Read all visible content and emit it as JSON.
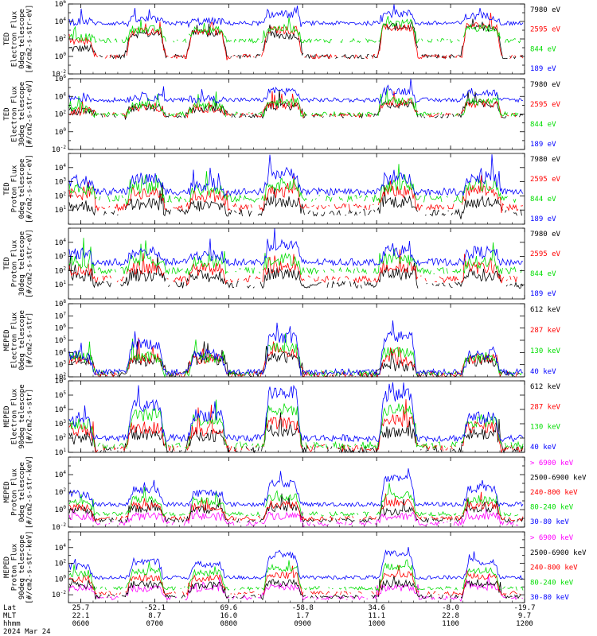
{
  "colors": {
    "blue": "#0000ff",
    "red": "#ff0000",
    "green": "#00dd00",
    "black": "#000000",
    "magenta": "#ff00ff"
  },
  "chart_data": {
    "type": "line",
    "x_axis": {
      "unit": "hhmm",
      "range": [
        "0550",
        "1200"
      ],
      "ticks": [
        {
          "hhmm": "0600",
          "lat": "25.7",
          "mlt": "22.1"
        },
        {
          "hhmm": "0700",
          "lat": "-52.1",
          "mlt": "8.7"
        },
        {
          "hhmm": "0800",
          "lat": "69.6",
          "mlt": "16.0"
        },
        {
          "hhmm": "0900",
          "lat": "-58.8",
          "mlt": "1.7"
        },
        {
          "hhmm": "1000",
          "lat": "34.6",
          "mlt": "11.1"
        },
        {
          "hhmm": "1100",
          "lat": "-8.0",
          "mlt": "22.8"
        },
        {
          "hhmm": "1200",
          "lat": "-19.7",
          "mlt": "9.7"
        }
      ],
      "row_labels": {
        "lat": "Lat",
        "mlt": "MLT",
        "hhmm": "hhmm"
      },
      "date": "2024 Mar 24"
    },
    "panels": [
      {
        "ylabel": [
          "TED",
          "Electron Flux",
          "0deg telescope",
          "[#/cm2-s-str-eV]"
        ],
        "y_scale": "log",
        "y_exp_range": [
          -2,
          6
        ],
        "tick_exps": [
          -2,
          0,
          2,
          4,
          6
        ],
        "series": [
          {
            "name": "7980 eV",
            "color": "black",
            "pass_levels": [
              0.9,
              2.6,
              2.6,
              2.4,
              3.4,
              3.2
            ],
            "quiet_level": 0.0
          },
          {
            "name": "2595 eV",
            "color": "red",
            "pass_levels": [
              1.8,
              2.8,
              2.8,
              3.0,
              3.3,
              3.5
            ],
            "quiet_level": 0.0
          },
          {
            "name": "844 eV",
            "color": "green",
            "pass_levels": [
              2.2,
              3.1,
              3.0,
              3.2,
              3.8,
              3.3
            ],
            "quiet_level": 1.8
          },
          {
            "name": "189 eV",
            "color": "blue",
            "pass_levels": [
              4.0,
              4.2,
              4.0,
              4.8,
              4.9,
              4.6
            ],
            "quiet_level": 3.8
          }
        ]
      },
      {
        "ylabel": [
          "TED",
          "Electron Flux",
          "30deg telescope",
          "[#/cm2-s-str-eV]"
        ],
        "y_scale": "log",
        "y_exp_range": [
          -2,
          6
        ],
        "tick_exps": [
          -2,
          0,
          2,
          4,
          6
        ],
        "series": [
          {
            "name": "7980 eV",
            "color": "black",
            "pass_levels": [
              2.3,
              2.7,
              2.6,
              2.9,
              3.1,
              3.2
            ],
            "quiet_level": 1.8
          },
          {
            "name": "2595 eV",
            "color": "red",
            "pass_levels": [
              2.3,
              2.7,
              2.6,
              3.0,
              3.2,
              3.2
            ],
            "quiet_level": 1.9
          },
          {
            "name": "844 eV",
            "color": "green",
            "pass_levels": [
              2.6,
              3.0,
              2.8,
              3.3,
              3.5,
              3.4
            ],
            "quiet_level": 2.0
          },
          {
            "name": "189 eV",
            "color": "blue",
            "pass_levels": [
              3.8,
              3.9,
              3.7,
              4.6,
              4.6,
              4.4
            ],
            "quiet_level": 3.6
          }
        ]
      },
      {
        "ylabel": [
          "TED",
          "Proton Flux",
          "0deg telescope",
          "[#/cm2-s-str-eV]"
        ],
        "y_scale": "log",
        "y_exp_range": [
          0,
          5
        ],
        "tick_exps": [
          1,
          2,
          3,
          4
        ],
        "series": [
          {
            "name": "7980 eV",
            "color": "black",
            "pass_levels": [
              1.3,
              1.4,
              1.3,
              1.6,
              1.6,
              1.5
            ],
            "quiet_level": 0.8
          },
          {
            "name": "2595 eV",
            "color": "red",
            "pass_levels": [
              2.1,
              2.2,
              2.0,
              2.3,
              2.3,
              2.4
            ],
            "quiet_level": 1.2
          },
          {
            "name": "844 eV",
            "color": "green",
            "pass_levels": [
              2.5,
              2.6,
              2.4,
              2.8,
              2.7,
              2.8
            ],
            "quiet_level": 1.8
          },
          {
            "name": "189 eV",
            "color": "blue",
            "pass_levels": [
              3.0,
              3.2,
              2.8,
              3.6,
              3.2,
              3.3
            ],
            "quiet_level": 2.3
          }
        ]
      },
      {
        "ylabel": [
          "TED",
          "Proton Flux",
          "30deg telescope",
          "[#/cm2-s-str-eV]"
        ],
        "y_scale": "log",
        "y_exp_range": [
          0,
          5
        ],
        "tick_exps": [
          1,
          2,
          3,
          4
        ],
        "series": [
          {
            "name": "7980 eV",
            "color": "black",
            "pass_levels": [
              1.6,
              1.7,
              1.6,
              1.8,
              1.8,
              1.7
            ],
            "quiet_level": 1.0
          },
          {
            "name": "2595 eV",
            "color": "red",
            "pass_levels": [
              2.1,
              2.2,
              2.1,
              2.3,
              2.3,
              2.2
            ],
            "quiet_level": 1.4
          },
          {
            "name": "844 eV",
            "color": "green",
            "pass_levels": [
              2.6,
              2.7,
              2.6,
              2.8,
              2.8,
              2.6
            ],
            "quiet_level": 2.0
          },
          {
            "name": "189 eV",
            "color": "blue",
            "pass_levels": [
              3.2,
              3.3,
              3.1,
              3.8,
              3.4,
              3.3
            ],
            "quiet_level": 2.6
          }
        ]
      },
      {
        "ylabel": [
          "MEPED",
          "Electron Flux",
          "0deg telescope",
          "[#/cm2-s-str]"
        ],
        "y_scale": "log",
        "y_exp_range": [
          2,
          8
        ],
        "tick_exps": [
          2,
          3,
          4,
          5,
          6,
          7,
          8
        ],
        "series": [
          {
            "name": "612 keV",
            "color": "black",
            "pass_levels": [
              3.4,
              3.3,
              3.4,
              3.6,
              2.9,
              3.3
            ],
            "quiet_level": 2.2
          },
          {
            "name": "287 keV",
            "color": "red",
            "pass_levels": [
              3.5,
              3.5,
              3.5,
              4.0,
              3.3,
              3.5
            ],
            "quiet_level": 2.2
          },
          {
            "name": "130 keV",
            "color": "green",
            "pass_levels": [
              3.6,
              3.6,
              3.6,
              4.4,
              4.0,
              3.6
            ],
            "quiet_level": 2.3
          },
          {
            "name": "40 keV",
            "color": "blue",
            "pass_levels": [
              3.7,
              4.7,
              3.8,
              5.2,
              5.3,
              3.8
            ],
            "quiet_level": 2.4
          }
        ]
      },
      {
        "ylabel": [
          "MEPED",
          "Electron Flux",
          "90deg telescope",
          "[#/cm2-s-str]"
        ],
        "y_scale": "log",
        "y_exp_range": [
          1,
          6
        ],
        "tick_exps": [
          1,
          2,
          3,
          4,
          5,
          6
        ],
        "series": [
          {
            "name": "612 keV",
            "color": "black",
            "pass_levels": [
              2.0,
              2.2,
              2.1,
              2.5,
              2.4,
              2.3
            ],
            "quiet_level": 1.2
          },
          {
            "name": "287 keV",
            "color": "red",
            "pass_levels": [
              2.5,
              2.7,
              2.6,
              3.0,
              3.2,
              2.8
            ],
            "quiet_level": 1.3
          },
          {
            "name": "130 keV",
            "color": "green",
            "pass_levels": [
              3.0,
              3.6,
              3.3,
              4.0,
              4.0,
              3.2
            ],
            "quiet_level": 1.5
          },
          {
            "name": "40 keV",
            "color": "blue",
            "pass_levels": [
              3.2,
              4.2,
              3.6,
              5.2,
              5.0,
              3.4
            ],
            "quiet_level": 2.0
          }
        ]
      },
      {
        "ylabel": [
          "MEPED",
          "Proton Flux",
          "0deg telescope",
          "[#/cm2-s-str-keV]"
        ],
        "y_scale": "log",
        "y_exp_range": [
          -2,
          6
        ],
        "tick_exps": [
          -2,
          0,
          2,
          4
        ],
        "series": [
          {
            "name": "> 6900 keV",
            "color": "magenta",
            "pass_levels": [
              -0.8,
              -0.8,
              -0.8,
              -0.7,
              -0.8,
              -0.7
            ],
            "quiet_level": -1.6
          },
          {
            "name": "2500-6900 keV",
            "color": "black",
            "pass_levels": [
              0.0,
              0.1,
              0.0,
              0.2,
              -0.2,
              0.1
            ],
            "quiet_level": -1.2
          },
          {
            "name": "240-800 keV",
            "color": "red",
            "pass_levels": [
              0.3,
              0.4,
              0.3,
              0.6,
              0.8,
              0.5
            ],
            "quiet_level": -1.0
          },
          {
            "name": "80-240 keV",
            "color": "green",
            "pass_levels": [
              0.9,
              1.1,
              0.9,
              1.4,
              1.6,
              1.1
            ],
            "quiet_level": -0.5
          },
          {
            "name": "30-80 keV",
            "color": "blue",
            "pass_levels": [
              1.8,
              2.2,
              1.9,
              3.0,
              3.5,
              2.4
            ],
            "quiet_level": 0.6
          }
        ]
      },
      {
        "ylabel": [
          "MEPED",
          "Proton Flux",
          "90deg telescope",
          "[#/cm2-s-str-keV]"
        ],
        "y_scale": "log",
        "y_exp_range": [
          -3,
          6
        ],
        "tick_exps": [
          -2,
          0,
          2,
          4
        ],
        "series": [
          {
            "name": "> 6900 keV",
            "color": "magenta",
            "pass_levels": [
              -1.2,
              -1.2,
              -1.2,
              -1.0,
              -1.1,
              -1.0
            ],
            "quiet_level": -2.4
          },
          {
            "name": "2500-6900 keV",
            "color": "black",
            "pass_levels": [
              -0.8,
              -0.7,
              -0.8,
              -0.5,
              -0.6,
              -0.6
            ],
            "quiet_level": -2.2
          },
          {
            "name": "240-800 keV",
            "color": "red",
            "pass_levels": [
              0.0,
              0.2,
              0.1,
              0.5,
              0.6,
              0.3
            ],
            "quiet_level": -1.8
          },
          {
            "name": "80-240 keV",
            "color": "green",
            "pass_levels": [
              0.7,
              1.0,
              0.8,
              1.4,
              1.6,
              1.0
            ],
            "quiet_level": -1.2
          },
          {
            "name": "30-80 keV",
            "color": "blue",
            "pass_levels": [
              1.6,
              2.2,
              1.8,
              3.0,
              3.2,
              2.2
            ],
            "quiet_level": 0.2
          }
        ]
      }
    ]
  }
}
